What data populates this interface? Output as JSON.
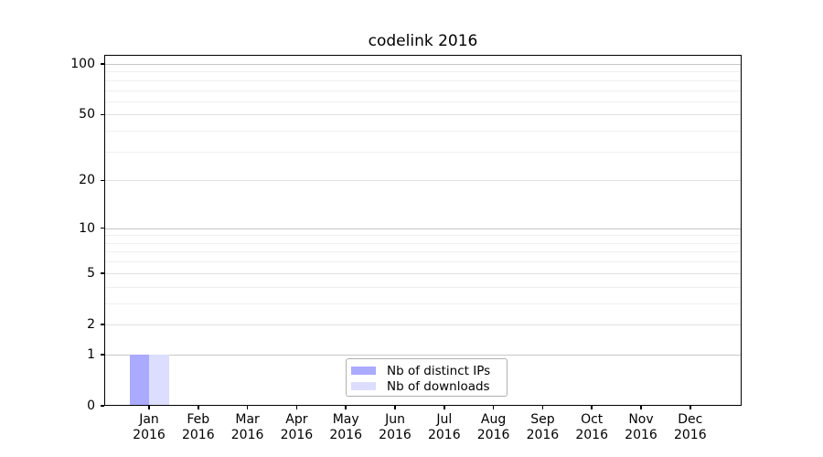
{
  "chart_data": {
    "type": "bar",
    "title": "codelink 2016",
    "categories": [
      "Jan",
      "Feb",
      "Mar",
      "Apr",
      "May",
      "Jun",
      "Jul",
      "Aug",
      "Sep",
      "Oct",
      "Nov",
      "Dec"
    ],
    "x_year": "2016",
    "series": [
      {
        "name": "Nb of distinct IPs",
        "color": "#aaaaff",
        "values": [
          1,
          0,
          0,
          0,
          0,
          0,
          0,
          0,
          0,
          0,
          0,
          0
        ]
      },
      {
        "name": "Nb of downloads",
        "color": "#ddddff",
        "values": [
          1,
          0,
          0,
          0,
          0,
          0,
          0,
          0,
          0,
          0,
          0,
          0
        ]
      }
    ],
    "xlabel": "",
    "ylabel": "",
    "y_axis": {
      "scale": "log1p",
      "ticks": [
        0,
        1,
        2,
        5,
        10,
        20,
        50,
        100
      ],
      "minor_gridlines": [
        3,
        4,
        6,
        7,
        8,
        9,
        30,
        40,
        60,
        70,
        80,
        90
      ],
      "ylim": [
        0,
        113
      ]
    },
    "grid": "horizontal",
    "legend": {
      "position": "lower center",
      "entries": [
        "Nb of distinct IPs",
        "Nb of downloads"
      ]
    }
  },
  "colors": {
    "bar_distinct_ips": "#aaaaff",
    "bar_downloads": "#ddddff",
    "grid_major_emphasis": "#c7c7c7",
    "grid_major": "#e0e0e0",
    "grid_minor": "#efefef",
    "axis": "#000000",
    "legend_border": "#b0b0b0",
    "background": "#ffffff",
    "text": "#000000"
  }
}
